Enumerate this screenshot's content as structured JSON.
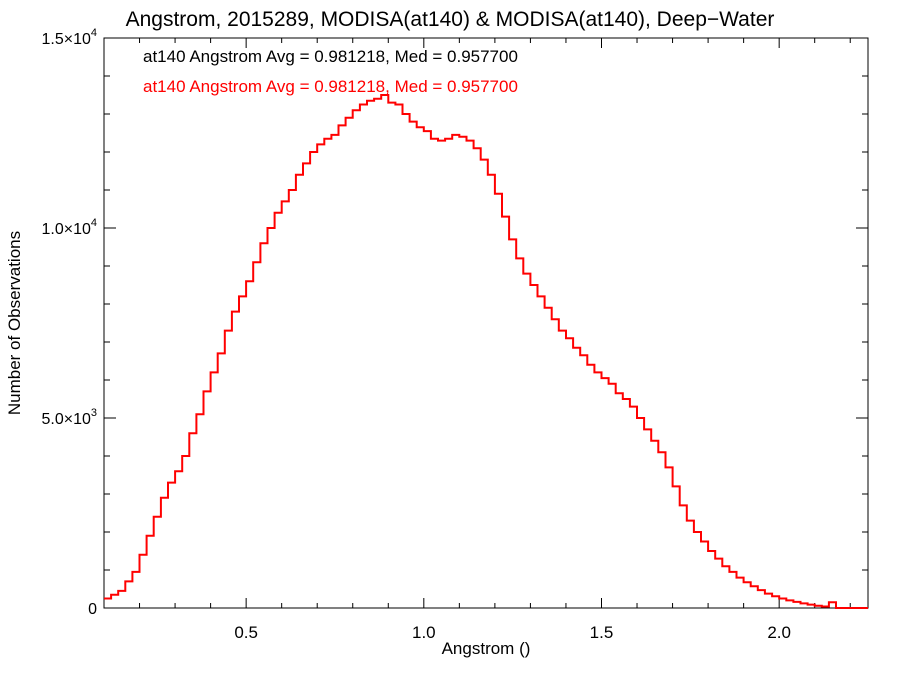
{
  "chart_data": {
    "type": "line",
    "title": "Angstrom, 2015289, MODISA(at140) & MODISA(at140), Deep−Water",
    "xlabel": "Angstrom ()",
    "ylabel": "Number of Observations",
    "xlim": [
      0.1,
      2.25
    ],
    "ylim": [
      0,
      15000
    ],
    "x_ticks": [
      {
        "value": 0.5,
        "label": "0.5"
      },
      {
        "value": 1.0,
        "label": "1.0"
      },
      {
        "value": 1.5,
        "label": "1.5"
      },
      {
        "value": 2.0,
        "label": "2.0"
      }
    ],
    "y_ticks": [
      {
        "value": 0,
        "mant": "0",
        "exp": ""
      },
      {
        "value": 5000,
        "mant": "5.0×10",
        "exp": "3"
      },
      {
        "value": 10000,
        "mant": "1.0×10",
        "exp": "4"
      },
      {
        "value": 15000,
        "mant": "1.5×10",
        "exp": "4"
      }
    ],
    "grid": false,
    "annotations": [
      {
        "text": "at140 Angstrom Avg = 0.981218, Med = 0.957700",
        "color": "#000000"
      },
      {
        "text": "at140 Angstrom Avg = 0.981218, Med = 0.957700",
        "color": "#ff0000"
      }
    ],
    "series": [
      {
        "color": "#ff0000",
        "step": true,
        "points": [
          [
            0.1,
            250
          ],
          [
            0.12,
            350
          ],
          [
            0.14,
            450
          ],
          [
            0.16,
            700
          ],
          [
            0.18,
            950
          ],
          [
            0.2,
            1400
          ],
          [
            0.22,
            1900
          ],
          [
            0.24,
            2400
          ],
          [
            0.26,
            2900
          ],
          [
            0.28,
            3300
          ],
          [
            0.3,
            3600
          ],
          [
            0.32,
            4000
          ],
          [
            0.34,
            4600
          ],
          [
            0.36,
            5100
          ],
          [
            0.38,
            5700
          ],
          [
            0.4,
            6200
          ],
          [
            0.42,
            6700
          ],
          [
            0.44,
            7300
          ],
          [
            0.46,
            7800
          ],
          [
            0.48,
            8200
          ],
          [
            0.5,
            8600
          ],
          [
            0.52,
            9100
          ],
          [
            0.54,
            9600
          ],
          [
            0.56,
            10000
          ],
          [
            0.58,
            10400
          ],
          [
            0.6,
            10700
          ],
          [
            0.62,
            11000
          ],
          [
            0.64,
            11400
          ],
          [
            0.66,
            11700
          ],
          [
            0.68,
            12000
          ],
          [
            0.7,
            12200
          ],
          [
            0.72,
            12350
          ],
          [
            0.74,
            12450
          ],
          [
            0.76,
            12700
          ],
          [
            0.78,
            12900
          ],
          [
            0.8,
            13100
          ],
          [
            0.82,
            13250
          ],
          [
            0.84,
            13350
          ],
          [
            0.86,
            13400
          ],
          [
            0.88,
            13500
          ],
          [
            0.9,
            13300
          ],
          [
            0.92,
            13250
          ],
          [
            0.94,
            13000
          ],
          [
            0.96,
            12800
          ],
          [
            0.98,
            12650
          ],
          [
            1.0,
            12550
          ],
          [
            1.02,
            12350
          ],
          [
            1.04,
            12300
          ],
          [
            1.06,
            12350
          ],
          [
            1.08,
            12450
          ],
          [
            1.1,
            12400
          ],
          [
            1.12,
            12300
          ],
          [
            1.14,
            12100
          ],
          [
            1.16,
            11800
          ],
          [
            1.18,
            11400
          ],
          [
            1.2,
            10900
          ],
          [
            1.22,
            10300
          ],
          [
            1.24,
            9700
          ],
          [
            1.26,
            9200
          ],
          [
            1.28,
            8800
          ],
          [
            1.3,
            8500
          ],
          [
            1.32,
            8200
          ],
          [
            1.34,
            7900
          ],
          [
            1.36,
            7600
          ],
          [
            1.38,
            7300
          ],
          [
            1.4,
            7100
          ],
          [
            1.42,
            6850
          ],
          [
            1.44,
            6650
          ],
          [
            1.46,
            6400
          ],
          [
            1.48,
            6200
          ],
          [
            1.5,
            6050
          ],
          [
            1.52,
            5900
          ],
          [
            1.54,
            5650
          ],
          [
            1.56,
            5500
          ],
          [
            1.58,
            5300
          ],
          [
            1.6,
            5000
          ],
          [
            1.62,
            4700
          ],
          [
            1.64,
            4400
          ],
          [
            1.66,
            4100
          ],
          [
            1.68,
            3700
          ],
          [
            1.7,
            3200
          ],
          [
            1.72,
            2700
          ],
          [
            1.74,
            2300
          ],
          [
            1.76,
            2000
          ],
          [
            1.78,
            1750
          ],
          [
            1.8,
            1500
          ],
          [
            1.82,
            1300
          ],
          [
            1.84,
            1100
          ],
          [
            1.86,
            950
          ],
          [
            1.88,
            800
          ],
          [
            1.9,
            680
          ],
          [
            1.92,
            570
          ],
          [
            1.94,
            470
          ],
          [
            1.96,
            380
          ],
          [
            1.98,
            310
          ],
          [
            2.0,
            250
          ],
          [
            2.02,
            200
          ],
          [
            2.04,
            160
          ],
          [
            2.06,
            120
          ],
          [
            2.08,
            90
          ],
          [
            2.1,
            60
          ],
          [
            2.12,
            40
          ],
          [
            2.14,
            150
          ],
          [
            2.16,
            0
          ],
          [
            2.25,
            0
          ]
        ]
      }
    ]
  }
}
